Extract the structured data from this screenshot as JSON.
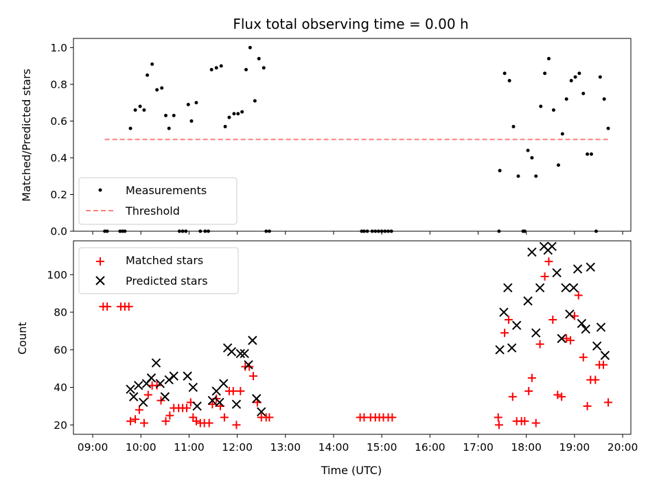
{
  "chart_data": [
    {
      "type": "scatter",
      "title": "Flux total observing time = 0.00 h",
      "ylabel": "Matched/Predicted stars",
      "xlim": [
        "09:00",
        "20:00"
      ],
      "ylim": [
        0,
        1.05
      ],
      "yticks": [
        "0.0",
        "0.2",
        "0.4",
        "0.6",
        "0.8",
        "1.0"
      ],
      "legend_position": "lower-left",
      "series": [
        {
          "name": "Measurements",
          "marker": "dot",
          "color": "#000000",
          "points": [
            [
              "09:15",
              0.0
            ],
            [
              "09:18",
              0.0
            ],
            [
              "09:34",
              0.0
            ],
            [
              "09:37",
              0.0
            ],
            [
              "09:40",
              0.0
            ],
            [
              "09:47",
              0.56
            ],
            [
              "09:53",
              0.66
            ],
            [
              "09:59",
              0.68
            ],
            [
              "10:04",
              0.66
            ],
            [
              "10:08",
              0.85
            ],
            [
              "10:14",
              0.91
            ],
            [
              "10:20",
              0.77
            ],
            [
              "10:26",
              0.78
            ],
            [
              "10:31",
              0.63
            ],
            [
              "10:35",
              0.56
            ],
            [
              "10:41",
              0.63
            ],
            [
              "10:48",
              0.0
            ],
            [
              "10:52",
              0.0
            ],
            [
              "10:56",
              0.0
            ],
            [
              "10:59",
              0.69
            ],
            [
              "11:03",
              0.6
            ],
            [
              "11:09",
              0.7
            ],
            [
              "11:14",
              0.0
            ],
            [
              "11:20",
              0.0
            ],
            [
              "11:24",
              0.0
            ],
            [
              "11:28",
              0.88
            ],
            [
              "11:34",
              0.89
            ],
            [
              "11:40",
              0.9
            ],
            [
              "11:45",
              0.57
            ],
            [
              "11:50",
              0.62
            ],
            [
              "11:56",
              0.64
            ],
            [
              "12:01",
              0.64
            ],
            [
              "12:06",
              0.65
            ],
            [
              "12:11",
              0.88
            ],
            [
              "12:16",
              1.0
            ],
            [
              "12:22",
              0.71
            ],
            [
              "12:27",
              0.94
            ],
            [
              "12:33",
              0.89
            ],
            [
              "12:36",
              0.0
            ],
            [
              "12:40",
              0.0
            ],
            [
              "14:35",
              0.0
            ],
            [
              "14:38",
              0.0
            ],
            [
              "14:42",
              0.0
            ],
            [
              "14:48",
              0.0
            ],
            [
              "14:52",
              0.0
            ],
            [
              "14:56",
              0.0
            ],
            [
              "15:00",
              0.0
            ],
            [
              "15:04",
              0.0
            ],
            [
              "15:08",
              0.0
            ],
            [
              "15:12",
              0.0
            ],
            [
              "17:26",
              0.0
            ],
            [
              "17:27",
              0.33
            ],
            [
              "17:33",
              0.86
            ],
            [
              "17:39",
              0.82
            ],
            [
              "17:44",
              0.57
            ],
            [
              "17:50",
              0.3
            ],
            [
              "17:56",
              0.0
            ],
            [
              "17:58",
              0.0
            ],
            [
              "18:02",
              0.44
            ],
            [
              "18:07",
              0.4
            ],
            [
              "18:12",
              0.3
            ],
            [
              "18:18",
              0.68
            ],
            [
              "18:23",
              0.86
            ],
            [
              "18:28",
              0.94
            ],
            [
              "18:34",
              0.66
            ],
            [
              "18:40",
              0.36
            ],
            [
              "18:45",
              0.53
            ],
            [
              "18:50",
              0.72
            ],
            [
              "18:56",
              0.82
            ],
            [
              "19:01",
              0.84
            ],
            [
              "19:06",
              0.86
            ],
            [
              "19:11",
              0.75
            ],
            [
              "19:16",
              0.42
            ],
            [
              "19:21",
              0.42
            ],
            [
              "19:27",
              0.0
            ],
            [
              "19:32",
              0.84
            ],
            [
              "19:37",
              0.72
            ],
            [
              "19:42",
              0.56
            ]
          ]
        },
        {
          "name": "Threshold",
          "marker": "dashed-line",
          "color": "#ff7f7f",
          "points": [
            [
              "09:15",
              0.5
            ],
            [
              "19:45",
              0.5
            ]
          ]
        }
      ]
    },
    {
      "type": "scatter",
      "ylabel": "Count",
      "xlabel": "Time (UTC)",
      "xlim": [
        "09:00",
        "20:00"
      ],
      "xticks": [
        "09:00",
        "10:00",
        "11:00",
        "12:00",
        "13:00",
        "14:00",
        "15:00",
        "16:00",
        "17:00",
        "18:00",
        "19:00",
        "20:00"
      ],
      "ylim": [
        15,
        118
      ],
      "yticks": [
        "20",
        "40",
        "60",
        "80",
        "100"
      ],
      "legend_position": "upper-left",
      "series": [
        {
          "name": "Matched stars",
          "marker": "plus",
          "color": "#ff0000",
          "points": [
            [
              "09:13",
              83
            ],
            [
              "09:18",
              83
            ],
            [
              "09:35",
              83
            ],
            [
              "09:40",
              83
            ],
            [
              "09:45",
              83
            ],
            [
              "09:47",
              22
            ],
            [
              "09:53",
              23
            ],
            [
              "09:58",
              28
            ],
            [
              "10:04",
              21
            ],
            [
              "10:09",
              36
            ],
            [
              "10:14",
              41
            ],
            [
              "10:20",
              41
            ],
            [
              "10:25",
              33
            ],
            [
              "10:31",
              22
            ],
            [
              "10:36",
              25
            ],
            [
              "10:41",
              29
            ],
            [
              "10:47",
              29
            ],
            [
              "10:52",
              29
            ],
            [
              "10:57",
              29
            ],
            [
              "11:02",
              32
            ],
            [
              "11:05",
              24
            ],
            [
              "11:09",
              22
            ],
            [
              "11:14",
              21
            ],
            [
              "11:19",
              21
            ],
            [
              "11:25",
              21
            ],
            [
              "11:29",
              31
            ],
            [
              "11:34",
              34
            ],
            [
              "11:39",
              30
            ],
            [
              "11:44",
              24
            ],
            [
              "11:50",
              38
            ],
            [
              "11:55",
              38
            ],
            [
              "11:59",
              20
            ],
            [
              "12:04",
              38
            ],
            [
              "12:10",
              51
            ],
            [
              "12:15",
              51
            ],
            [
              "12:20",
              46
            ],
            [
              "12:25",
              32
            ],
            [
              "12:30",
              24
            ],
            [
              "12:36",
              24
            ],
            [
              "12:40",
              24
            ],
            [
              "14:33",
              24
            ],
            [
              "14:38",
              24
            ],
            [
              "14:46",
              24
            ],
            [
              "14:52",
              24
            ],
            [
              "14:57",
              24
            ],
            [
              "15:02",
              24
            ],
            [
              "15:08",
              24
            ],
            [
              "15:13",
              24
            ],
            [
              "17:25",
              24
            ],
            [
              "17:26",
              20
            ],
            [
              "17:33",
              69
            ],
            [
              "17:38",
              76
            ],
            [
              "17:43",
              35
            ],
            [
              "17:48",
              22
            ],
            [
              "17:54",
              22
            ],
            [
              "17:58",
              22
            ],
            [
              "18:03",
              38
            ],
            [
              "18:07",
              45
            ],
            [
              "18:12",
              21
            ],
            [
              "18:17",
              63
            ],
            [
              "18:23",
              99
            ],
            [
              "18:28",
              107
            ],
            [
              "18:33",
              76
            ],
            [
              "18:39",
              36
            ],
            [
              "18:44",
              35
            ],
            [
              "18:50",
              66
            ],
            [
              "18:55",
              65
            ],
            [
              "19:00",
              78
            ],
            [
              "19:05",
              89
            ],
            [
              "19:11",
              56
            ],
            [
              "19:16",
              30
            ],
            [
              "19:20",
              44
            ],
            [
              "19:26",
              44
            ],
            [
              "19:31",
              52
            ],
            [
              "19:36",
              52
            ],
            [
              "19:42",
              32
            ]
          ]
        },
        {
          "name": "Predicted stars",
          "marker": "x",
          "color": "#000000",
          "points": [
            [
              "09:47",
              39
            ],
            [
              "09:51",
              35
            ],
            [
              "09:57",
              41
            ],
            [
              "10:03",
              32
            ],
            [
              "10:07",
              42
            ],
            [
              "10:13",
              45
            ],
            [
              "10:19",
              53
            ],
            [
              "10:24",
              42
            ],
            [
              "10:30",
              35
            ],
            [
              "10:35",
              44
            ],
            [
              "10:41",
              46
            ],
            [
              "10:58",
              46
            ],
            [
              "11:05",
              40
            ],
            [
              "11:10",
              30
            ],
            [
              "11:29",
              33
            ],
            [
              "11:34",
              38
            ],
            [
              "11:38",
              32
            ],
            [
              "11:43",
              42
            ],
            [
              "11:48",
              61
            ],
            [
              "11:53",
              59
            ],
            [
              "11:59",
              31
            ],
            [
              "12:04",
              58
            ],
            [
              "12:09",
              58
            ],
            [
              "12:14",
              52
            ],
            [
              "12:19",
              65
            ],
            [
              "12:24",
              34
            ],
            [
              "12:30",
              27
            ],
            [
              "17:27",
              60
            ],
            [
              "17:32",
              80
            ],
            [
              "17:37",
              93
            ],
            [
              "17:42",
              61
            ],
            [
              "17:48",
              73
            ],
            [
              "18:02",
              86
            ],
            [
              "18:07",
              112
            ],
            [
              "18:12",
              69
            ],
            [
              "18:17",
              93
            ],
            [
              "18:22",
              115
            ],
            [
              "18:27",
              113
            ],
            [
              "18:32",
              115
            ],
            [
              "18:38",
              101
            ],
            [
              "18:44",
              66
            ],
            [
              "18:49",
              93
            ],
            [
              "18:54",
              79
            ],
            [
              "18:59",
              93
            ],
            [
              "19:04",
              103
            ],
            [
              "19:09",
              74
            ],
            [
              "19:14",
              71
            ],
            [
              "19:20",
              104
            ],
            [
              "19:28",
              62
            ],
            [
              "19:33",
              72
            ],
            [
              "19:38",
              57
            ]
          ]
        }
      ]
    }
  ]
}
